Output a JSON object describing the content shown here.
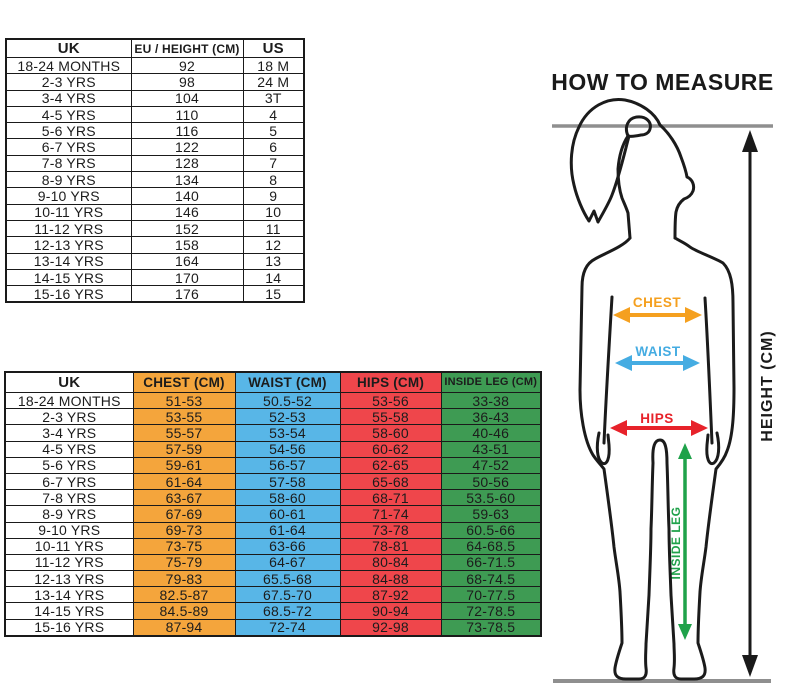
{
  "diagram": {
    "title": "HOW TO MEASURE",
    "labels": {
      "chest": "CHEST",
      "waist": "WAIST",
      "hips": "HIPS",
      "inside_leg": "INSIDE LEG",
      "height": "HEIGHT (CM)"
    },
    "colors": {
      "chest": "#F5A01F",
      "waist": "#45ACE2",
      "hips": "#E7222A",
      "inside_leg": "#1FA24A",
      "height_arrow": "#1A1A1A",
      "guide_line": "#8F8F8F",
      "outline": "#1B1B1B"
    }
  },
  "chart_data": [
    {
      "type": "table",
      "title": "Age to EU height and US size conversion",
      "columns": [
        "UK",
        "EU / HEIGHT (CM)",
        "US"
      ],
      "rows": [
        [
          "18-24 MONTHS",
          "92",
          "18 M"
        ],
        [
          "2-3 YRS",
          "98",
          "24 M"
        ],
        [
          "3-4 YRS",
          "104",
          "3T"
        ],
        [
          "4-5 YRS",
          "110",
          "4"
        ],
        [
          "5-6 YRS",
          "116",
          "5"
        ],
        [
          "6-7 YRS",
          "122",
          "6"
        ],
        [
          "7-8 YRS",
          "128",
          "7"
        ],
        [
          "8-9 YRS",
          "134",
          "8"
        ],
        [
          "9-10 YRS",
          "140",
          "9"
        ],
        [
          "10-11 YRS",
          "146",
          "10"
        ],
        [
          "11-12 YRS",
          "152",
          "11"
        ],
        [
          "12-13 YRS",
          "158",
          "12"
        ],
        [
          "13-14 YRS",
          "164",
          "13"
        ],
        [
          "14-15 YRS",
          "170",
          "14"
        ],
        [
          "15-16 YRS",
          "176",
          "15"
        ]
      ]
    },
    {
      "type": "table",
      "title": "Body measurements by age",
      "columns": [
        "UK",
        "CHEST (CM)",
        "WAIST (CM)",
        "HIPS (CM)",
        "INSIDE LEG (CM)"
      ],
      "column_colors": [
        "#FFFFFF",
        "#F4A53C",
        "#58B6E7",
        "#EF464B",
        "#3E9B53"
      ],
      "rows": [
        [
          "18-24 MONTHS",
          "51-53",
          "50.5-52",
          "53-56",
          "33-38"
        ],
        [
          "2-3 YRS",
          "53-55",
          "52-53",
          "55-58",
          "36-43"
        ],
        [
          "3-4 YRS",
          "55-57",
          "53-54",
          "58-60",
          "40-46"
        ],
        [
          "4-5 YRS",
          "57-59",
          "54-56",
          "60-62",
          "43-51"
        ],
        [
          "5-6 YRS",
          "59-61",
          "56-57",
          "62-65",
          "47-52"
        ],
        [
          "6-7 YRS",
          "61-64",
          "57-58",
          "65-68",
          "50-56"
        ],
        [
          "7-8 YRS",
          "63-67",
          "58-60",
          "68-71",
          "53.5-60"
        ],
        [
          "8-9 YRS",
          "67-69",
          "60-61",
          "71-74",
          "59-63"
        ],
        [
          "9-10 YRS",
          "69-73",
          "61-64",
          "73-78",
          "60.5-66"
        ],
        [
          "10-11 YRS",
          "73-75",
          "63-66",
          "78-81",
          "64-68.5"
        ],
        [
          "11-12 YRS",
          "75-79",
          "64-67",
          "80-84",
          "66-71.5"
        ],
        [
          "12-13 YRS",
          "79-83",
          "65.5-68",
          "84-88",
          "68-74.5"
        ],
        [
          "13-14 YRS",
          "82.5-87",
          "67.5-70",
          "87-92",
          "70-77.5"
        ],
        [
          "14-15 YRS",
          "84.5-89",
          "68.5-72",
          "90-94",
          "72-78.5"
        ],
        [
          "15-16 YRS",
          "87-94",
          "72-74",
          "92-98",
          "73-78.5"
        ]
      ]
    }
  ]
}
